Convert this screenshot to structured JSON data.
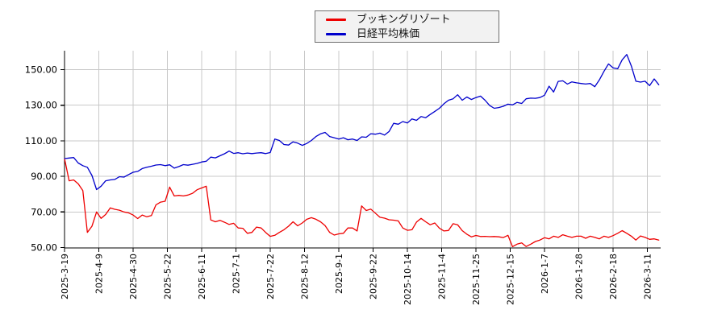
{
  "legend": {
    "items": [
      {
        "label": "ブッキングリゾート",
        "color": "#ee0000"
      },
      {
        "label": "日経平均株価",
        "color": "#0000cc"
      }
    ]
  },
  "chart_data": {
    "type": "line",
    "title": "",
    "xlabel": "",
    "ylabel": "",
    "grid": true,
    "legend_position": "top-center",
    "ylim": [
      50,
      160
    ],
    "y_ticks": [
      {
        "value": 150,
        "label": "150.00"
      },
      {
        "value": 130,
        "label": "130.00"
      },
      {
        "value": 110,
        "label": "110.00"
      },
      {
        "value": 90,
        "label": "90.00"
      },
      {
        "value": 70,
        "label": "70.00"
      },
      {
        "value": 50,
        "label": "50.00"
      }
    ],
    "x_tick_labels": [
      "2025-3-19",
      "2025-4-9",
      "2025-4-30",
      "2025-5-22",
      "2025-6-11",
      "2025-7-1",
      "2025-7-22",
      "2025-8-12",
      "2025-9-1",
      "2025-9-22",
      "2025-10-14",
      "2025-11-4",
      "2025-11-25",
      "2025-12-15",
      "2026-1-7",
      "2026-1-28",
      "2026-2-18",
      "2026-3-11"
    ],
    "x_tick_interval_trading_days": 15,
    "sample_interval_trading_days": 2,
    "baseline_value": 100,
    "series": [
      {
        "name": "ブッキングリゾート",
        "color": "#ee0000",
        "values": [
          100,
          87.5,
          88,
          85.8,
          82,
          58.5,
          62,
          70,
          66.4,
          68.6,
          72.3,
          71.5,
          71,
          70,
          69.5,
          68.3,
          66.3,
          68.3,
          67.3,
          68,
          74,
          75.5,
          76,
          84,
          79,
          79.3,
          79,
          79.5,
          80.5,
          82.5,
          83.5,
          84.5,
          65.5,
          64.5,
          65.3,
          64.2,
          63,
          63.6,
          61,
          60.8,
          58,
          58.5,
          61.5,
          61,
          58.5,
          56.3,
          56.9,
          58.5,
          60,
          62,
          64.5,
          62.2,
          63.8,
          65.9,
          66.8,
          65.9,
          64.5,
          62.3,
          58.5,
          57,
          57.7,
          58,
          61,
          61,
          59.3,
          73.4,
          70.8,
          71.6,
          69.3,
          67,
          66.5,
          65.6,
          65.4,
          65,
          61,
          59.7,
          60,
          64.3,
          66.4,
          64.5,
          62.8,
          63.8,
          60.9,
          59.3,
          59.6,
          63.4,
          62.8,
          59.5,
          57.5,
          56,
          56.8,
          56.2,
          56.3,
          56.1,
          56.2,
          56,
          55.6,
          56.9,
          50.5,
          51.9,
          52.6,
          50.6,
          51.9,
          53.4,
          54.2,
          55.5,
          54.9,
          56.4,
          55.7,
          57.2,
          56.4,
          55.7,
          56.4,
          56.4,
          55.2,
          56.4,
          55.7,
          54.9,
          56.4,
          55.7,
          56.7,
          58,
          59.5,
          58,
          56.4,
          54.2,
          56.5,
          55.7,
          54.6,
          54.9,
          54.2
        ]
      },
      {
        "name": "日経平均株価",
        "color": "#0000cc",
        "values": [
          100,
          100.3,
          100.6,
          97.5,
          96,
          95.1,
          90.5,
          82.6,
          84.5,
          87.5,
          88,
          88.3,
          89.8,
          89.6,
          91,
          92.3,
          92.8,
          94.4,
          95.1,
          95.7,
          96.4,
          96.6,
          96,
          96.5,
          94.6,
          95.5,
          96.6,
          96.3,
          96.8,
          97.3,
          98.1,
          98.5,
          100.8,
          100.4,
          101.6,
          102.7,
          104.2,
          102.9,
          103.3,
          102.7,
          103.1,
          102.8,
          103.1,
          103.3,
          102.8,
          103.4,
          111,
          110.2,
          107.9,
          107.6,
          109.4,
          108.7,
          107.4,
          108.5,
          110.2,
          112.4,
          113.9,
          114.7,
          112.4,
          111.7,
          111,
          111.7,
          110.6,
          111,
          110.2,
          112.2,
          112,
          114,
          113.7,
          114.3,
          113.2,
          115.2,
          119.8,
          119.3,
          120.8,
          120,
          122.3,
          121.5,
          123.6,
          123,
          124.8,
          126.5,
          128.3,
          130.8,
          132.8,
          133.6,
          135.9,
          132.8,
          134.6,
          133.2,
          134.3,
          135.1,
          132.8,
          129.8,
          128.3,
          128.7,
          129.4,
          130.6,
          130.2,
          131.6,
          131,
          133.6,
          134,
          133.9,
          134.3,
          135.6,
          140.7,
          137.4,
          143.4,
          143.7,
          141.9,
          143.1,
          142.6,
          142.2,
          141.9,
          142.2,
          140.4,
          144.2,
          149,
          153.2,
          151,
          150.5,
          155.5,
          158.5,
          152,
          143.5,
          143,
          143.5,
          141,
          144.8,
          141.5
        ]
      }
    ]
  },
  "colors": {
    "grid": "#c8c8c8",
    "axis": "#000000",
    "tick_text": "#000000",
    "legend_bg": "#f2f2f2",
    "legend_border": "#6f6f6f"
  }
}
